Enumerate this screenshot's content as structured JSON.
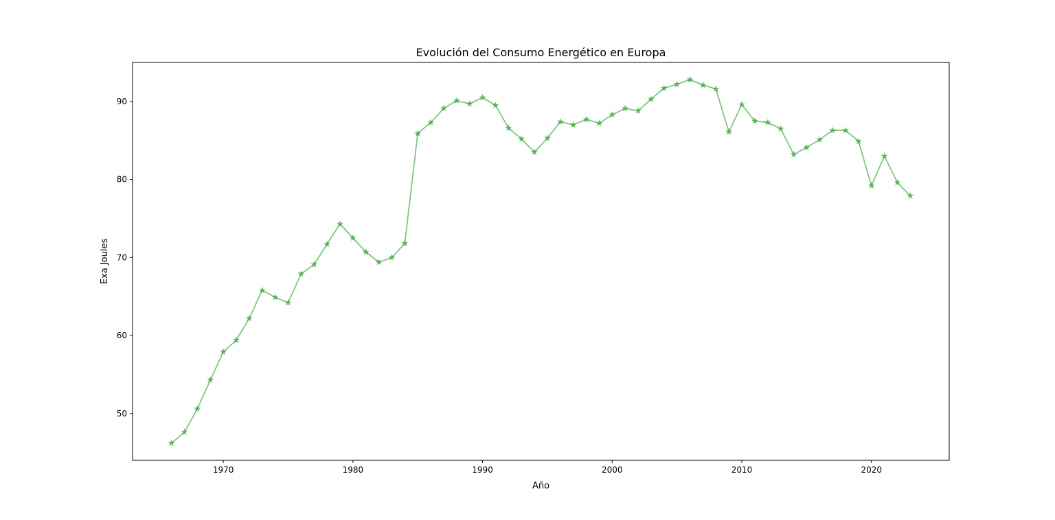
{
  "chart_data": {
    "type": "line",
    "title": "Evolución del Consumo Energético en Europa",
    "xlabel": "Año",
    "ylabel": "Exa Joules",
    "xlim": [
      1963,
      2026
    ],
    "ylim": [
      44,
      95
    ],
    "xticks": [
      1970,
      1980,
      1990,
      2000,
      2010,
      2020
    ],
    "yticks": [
      50,
      60,
      70,
      80,
      90
    ],
    "grid": false,
    "legend": "none",
    "marker": "star",
    "line_color": "#2ca02c",
    "line_opacity": 0.6,
    "series": [
      {
        "x": [
          1966,
          1967,
          1968,
          1969,
          1970,
          1971,
          1972,
          1973,
          1974,
          1975,
          1976,
          1977,
          1978,
          1979,
          1980,
          1981,
          1982,
          1983,
          1984,
          1985,
          1986,
          1987,
          1988,
          1989,
          1990,
          1991,
          1992,
          1993,
          1994,
          1995,
          1996,
          1997,
          1998,
          1999,
          2000,
          2001,
          2002,
          2003,
          2004,
          2005,
          2006,
          2007,
          2008,
          2009,
          2010,
          2011,
          2012,
          2013,
          2014,
          2015,
          2016,
          2017,
          2018,
          2019,
          2020,
          2021,
          2022,
          2023
        ],
        "values": [
          46.2,
          47.6,
          50.6,
          54.3,
          57.9,
          59.4,
          62.2,
          65.8,
          64.9,
          64.2,
          67.9,
          69.1,
          71.7,
          74.3,
          72.5,
          70.7,
          69.4,
          70.0,
          71.8,
          85.9,
          87.3,
          89.1,
          90.1,
          89.7,
          90.5,
          89.5,
          86.6,
          85.2,
          83.5,
          85.3,
          87.4,
          87.0,
          87.7,
          87.2,
          88.3,
          89.1,
          88.8,
          90.3,
          91.7,
          92.2,
          92.8,
          92.1,
          91.6,
          86.1,
          89.6,
          87.5,
          87.3,
          86.5,
          83.2,
          84.1,
          85.1,
          86.3,
          86.3,
          84.9,
          79.2,
          83.0,
          79.6,
          77.9
        ]
      }
    ]
  }
}
